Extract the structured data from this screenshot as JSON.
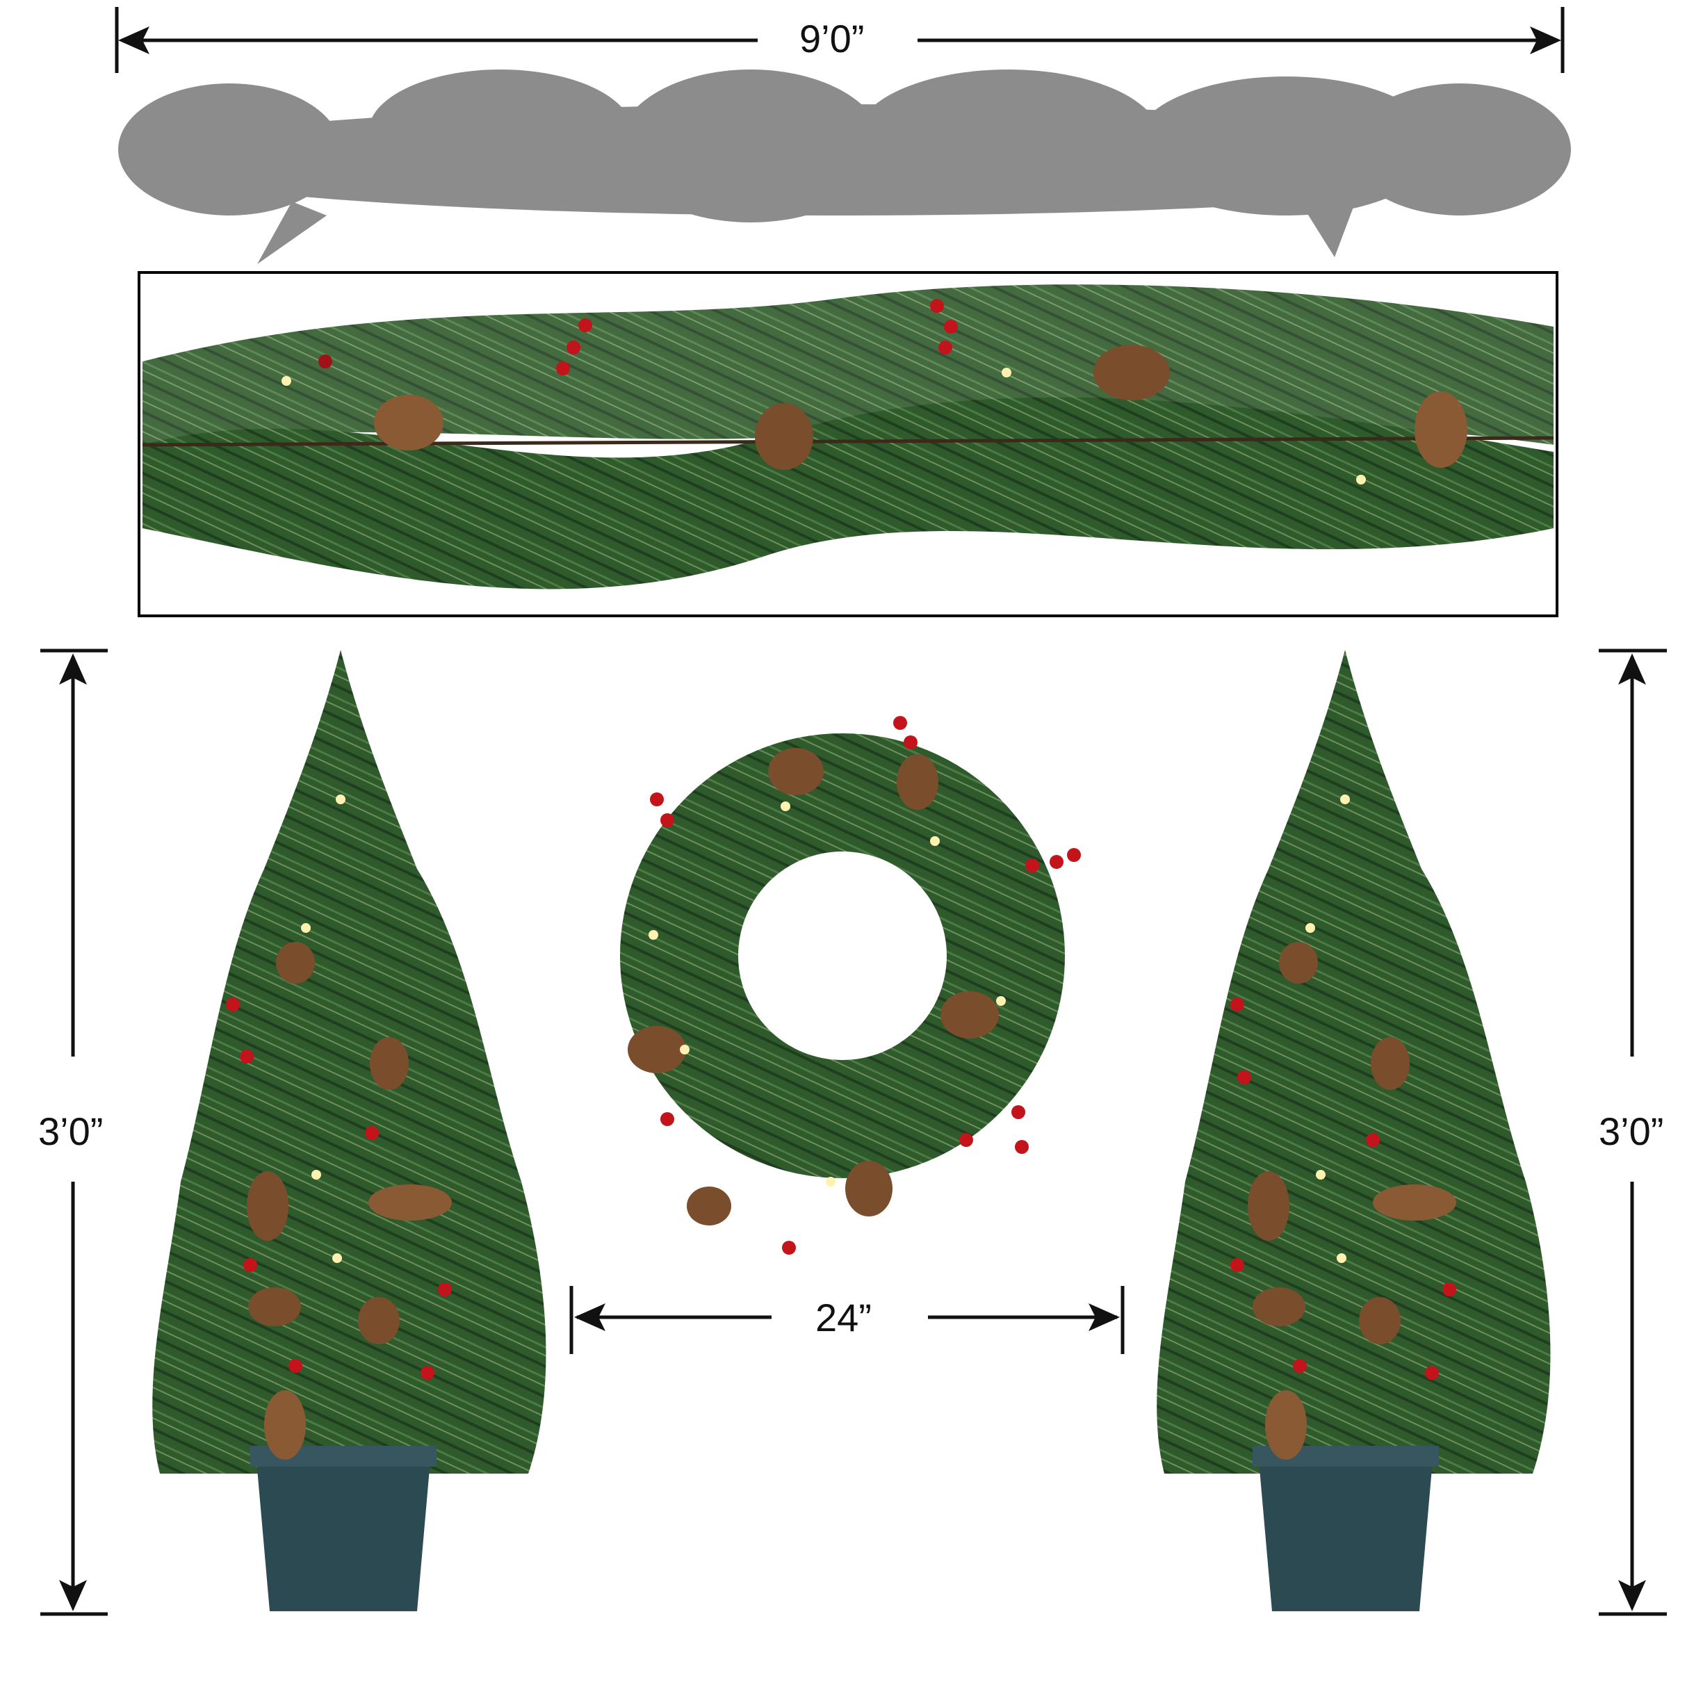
{
  "dimensions": {
    "garland_length": "9’0”",
    "left_tree_height": "3’0”",
    "right_tree_height": "3’0”",
    "wreath_diameter": "24”"
  },
  "colors": {
    "background": "#ffffff",
    "silhouette": "#8c8c8c",
    "needle_dark": "#1f3d1f",
    "needle_mid": "#2f5a2b",
    "needle_light": "#6f8f5f",
    "berry": "#c3141c",
    "pinecone": "#8a5a34",
    "light_bulb": "#fff2b0",
    "pot": "#2c4a52",
    "frame": "#000000",
    "dimension_line": "#111111"
  },
  "icons": [
    "arrow-left-icon",
    "arrow-right-icon",
    "arrow-up-icon",
    "arrow-down-icon"
  ]
}
